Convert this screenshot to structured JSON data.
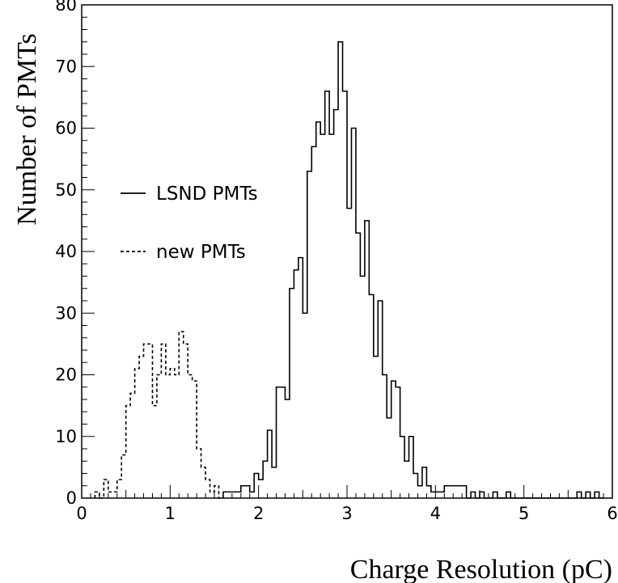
{
  "chart_data": {
    "type": "histogram",
    "title": "",
    "xlabel": "Charge Resolution (pC)",
    "ylabel": "Number of PMTs",
    "xlim": [
      0,
      6
    ],
    "ylim": [
      0,
      80
    ],
    "bin_width": 0.05,
    "x_ticks": [
      0,
      1,
      2,
      3,
      4,
      5,
      6
    ],
    "y_ticks": [
      0,
      10,
      20,
      30,
      40,
      50,
      60,
      70,
      80
    ],
    "grid": false,
    "legend_position": "center-left",
    "series": [
      {
        "name": "LSND PMTs",
        "line_style": "solid",
        "bins": [
          [
            1.6,
            1.65,
            1
          ],
          [
            1.65,
            1.7,
            1
          ],
          [
            1.7,
            1.75,
            1
          ],
          [
            1.75,
            1.8,
            1
          ],
          [
            1.8,
            1.85,
            2
          ],
          [
            1.85,
            1.9,
            2
          ],
          [
            1.9,
            1.95,
            1
          ],
          [
            1.95,
            2.0,
            4
          ],
          [
            2.0,
            2.05,
            3
          ],
          [
            2.05,
            2.1,
            6
          ],
          [
            2.1,
            2.15,
            11
          ],
          [
            2.15,
            2.2,
            5
          ],
          [
            2.2,
            2.25,
            18
          ],
          [
            2.25,
            2.3,
            18
          ],
          [
            2.3,
            2.35,
            16
          ],
          [
            2.35,
            2.4,
            34
          ],
          [
            2.4,
            2.45,
            37
          ],
          [
            2.45,
            2.5,
            39
          ],
          [
            2.5,
            2.55,
            30
          ],
          [
            2.55,
            2.6,
            53
          ],
          [
            2.6,
            2.65,
            57
          ],
          [
            2.65,
            2.7,
            61
          ],
          [
            2.7,
            2.75,
            59
          ],
          [
            2.75,
            2.8,
            66
          ],
          [
            2.8,
            2.85,
            59
          ],
          [
            2.85,
            2.9,
            63
          ],
          [
            2.9,
            2.95,
            74
          ],
          [
            2.95,
            3.0,
            66
          ],
          [
            3.0,
            3.05,
            47
          ],
          [
            3.05,
            3.1,
            60
          ],
          [
            3.1,
            3.15,
            43
          ],
          [
            3.15,
            3.2,
            36
          ],
          [
            3.2,
            3.25,
            45
          ],
          [
            3.25,
            3.3,
            33
          ],
          [
            3.3,
            3.35,
            23
          ],
          [
            3.35,
            3.4,
            32
          ],
          [
            3.4,
            3.45,
            20
          ],
          [
            3.45,
            3.5,
            13
          ],
          [
            3.5,
            3.55,
            19
          ],
          [
            3.55,
            3.6,
            18
          ],
          [
            3.6,
            3.65,
            10
          ],
          [
            3.65,
            3.7,
            6
          ],
          [
            3.7,
            3.75,
            10
          ],
          [
            3.75,
            3.8,
            4
          ],
          [
            3.8,
            3.85,
            2
          ],
          [
            3.85,
            3.9,
            5
          ],
          [
            3.9,
            3.95,
            2
          ],
          [
            3.95,
            4.0,
            1
          ],
          [
            4.0,
            4.05,
            1
          ],
          [
            4.05,
            4.1,
            1
          ],
          [
            4.1,
            4.15,
            2
          ],
          [
            4.15,
            4.2,
            2
          ],
          [
            4.2,
            4.25,
            2
          ],
          [
            4.25,
            4.3,
            2
          ],
          [
            4.3,
            4.35,
            2
          ],
          [
            4.35,
            4.4,
            0
          ],
          [
            4.4,
            4.45,
            1
          ],
          [
            4.45,
            4.5,
            0
          ],
          [
            4.5,
            4.55,
            1
          ],
          [
            4.55,
            4.6,
            0
          ],
          [
            4.6,
            4.65,
            0
          ],
          [
            4.65,
            4.7,
            1
          ],
          [
            4.7,
            4.75,
            0
          ],
          [
            4.75,
            4.8,
            0
          ],
          [
            4.8,
            4.85,
            1
          ],
          [
            4.85,
            4.9,
            0
          ],
          [
            4.9,
            4.95,
            0
          ],
          [
            4.95,
            5.0,
            0
          ],
          [
            5.0,
            5.05,
            0
          ],
          [
            5.05,
            5.1,
            0
          ],
          [
            5.1,
            5.15,
            0
          ],
          [
            5.15,
            5.2,
            0
          ],
          [
            5.2,
            5.25,
            0
          ],
          [
            5.25,
            5.3,
            0
          ],
          [
            5.3,
            5.35,
            0
          ],
          [
            5.35,
            5.4,
            0
          ],
          [
            5.4,
            5.45,
            0
          ],
          [
            5.45,
            5.5,
            0
          ],
          [
            5.5,
            5.55,
            0
          ],
          [
            5.55,
            5.6,
            0
          ],
          [
            5.6,
            5.65,
            1
          ],
          [
            5.65,
            5.7,
            0
          ],
          [
            5.7,
            5.75,
            1
          ],
          [
            5.75,
            5.8,
            0
          ],
          [
            5.8,
            5.85,
            1
          ],
          [
            5.85,
            5.9,
            0
          ]
        ]
      },
      {
        "name": "new PMTs",
        "line_style": "dashed",
        "bins": [
          [
            0.15,
            0.2,
            1
          ],
          [
            0.2,
            0.25,
            0
          ],
          [
            0.25,
            0.3,
            3
          ],
          [
            0.3,
            0.35,
            1
          ],
          [
            0.35,
            0.4,
            1
          ],
          [
            0.4,
            0.45,
            3
          ],
          [
            0.45,
            0.5,
            7
          ],
          [
            0.5,
            0.55,
            15
          ],
          [
            0.55,
            0.6,
            17
          ],
          [
            0.6,
            0.65,
            21
          ],
          [
            0.65,
            0.7,
            23
          ],
          [
            0.7,
            0.75,
            25
          ],
          [
            0.75,
            0.8,
            25
          ],
          [
            0.8,
            0.85,
            15
          ],
          [
            0.85,
            0.9,
            20
          ],
          [
            0.9,
            0.95,
            25
          ],
          [
            0.95,
            1.0,
            20
          ],
          [
            1.0,
            1.05,
            21
          ],
          [
            1.05,
            1.1,
            20
          ],
          [
            1.1,
            1.15,
            27
          ],
          [
            1.15,
            1.2,
            25
          ],
          [
            1.2,
            1.25,
            20
          ],
          [
            1.25,
            1.3,
            19
          ],
          [
            1.3,
            1.35,
            8
          ],
          [
            1.35,
            1.4,
            5
          ],
          [
            1.4,
            1.45,
            3
          ],
          [
            1.45,
            1.5,
            1
          ],
          [
            1.5,
            1.55,
            2
          ],
          [
            1.55,
            1.6,
            0
          ]
        ]
      }
    ]
  }
}
